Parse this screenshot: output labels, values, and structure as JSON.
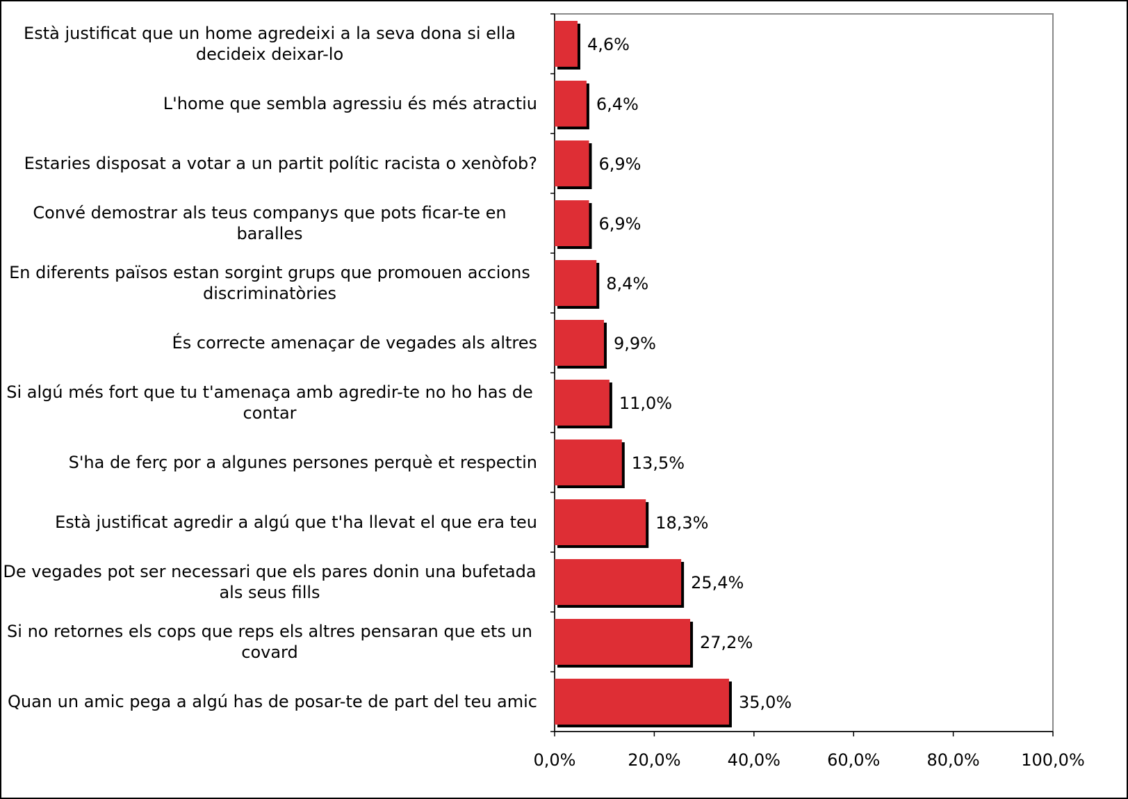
{
  "chart_data": {
    "type": "bar",
    "orientation": "horizontal",
    "categories": [
      "Està justificat que un home agredeixi a la seva dona si ella decideix deixar-lo",
      "L'home que sembla agressiu és més atractiu",
      "Estaries disposat a votar a un partit polític racista o xenòfob?",
      "Convé demostrar als teus companys que pots ficar-te en baralles",
      "En diferents països estan sorgint grups que promouen accions discriminatòries",
      "És correcte amenaçar de vegades als altres",
      "Si algú més fort que tu t'amenaça amb agredir-te no ho has de contar",
      "S'ha de ferç por a algunes persones perquè et respectin",
      "Està justificat agredir a algú que t'ha llevat el que era teu",
      "De vegades pot ser necessari que els pares donin una bufetada als seus fills",
      "Si no retornes els cops que reps els altres pensaran que ets un covard",
      "Quan un amic pega a algú has de posar-te de part del teu amic"
    ],
    "values": [
      4.6,
      6.4,
      6.9,
      6.9,
      8.4,
      9.9,
      11.0,
      13.5,
      18.3,
      25.4,
      27.2,
      35.0
    ],
    "value_labels": [
      "4,6%",
      "6,4%",
      "6,9%",
      "6,9%",
      "8,4%",
      "9,9%",
      "11,0%",
      "13,5%",
      "18,3%",
      "25,4%",
      "27,2%",
      "35,0%"
    ],
    "color": "#de2e35",
    "xlim": [
      0,
      100
    ],
    "xticks": [
      {
        "value": 0,
        "label": "0,0%"
      },
      {
        "value": 20,
        "label": "20,0%"
      },
      {
        "value": 40,
        "label": "40,0%"
      },
      {
        "value": 60,
        "label": "60,0%"
      },
      {
        "value": 80,
        "label": "80,0%"
      },
      {
        "value": 100,
        "label": "100,0%"
      }
    ]
  }
}
